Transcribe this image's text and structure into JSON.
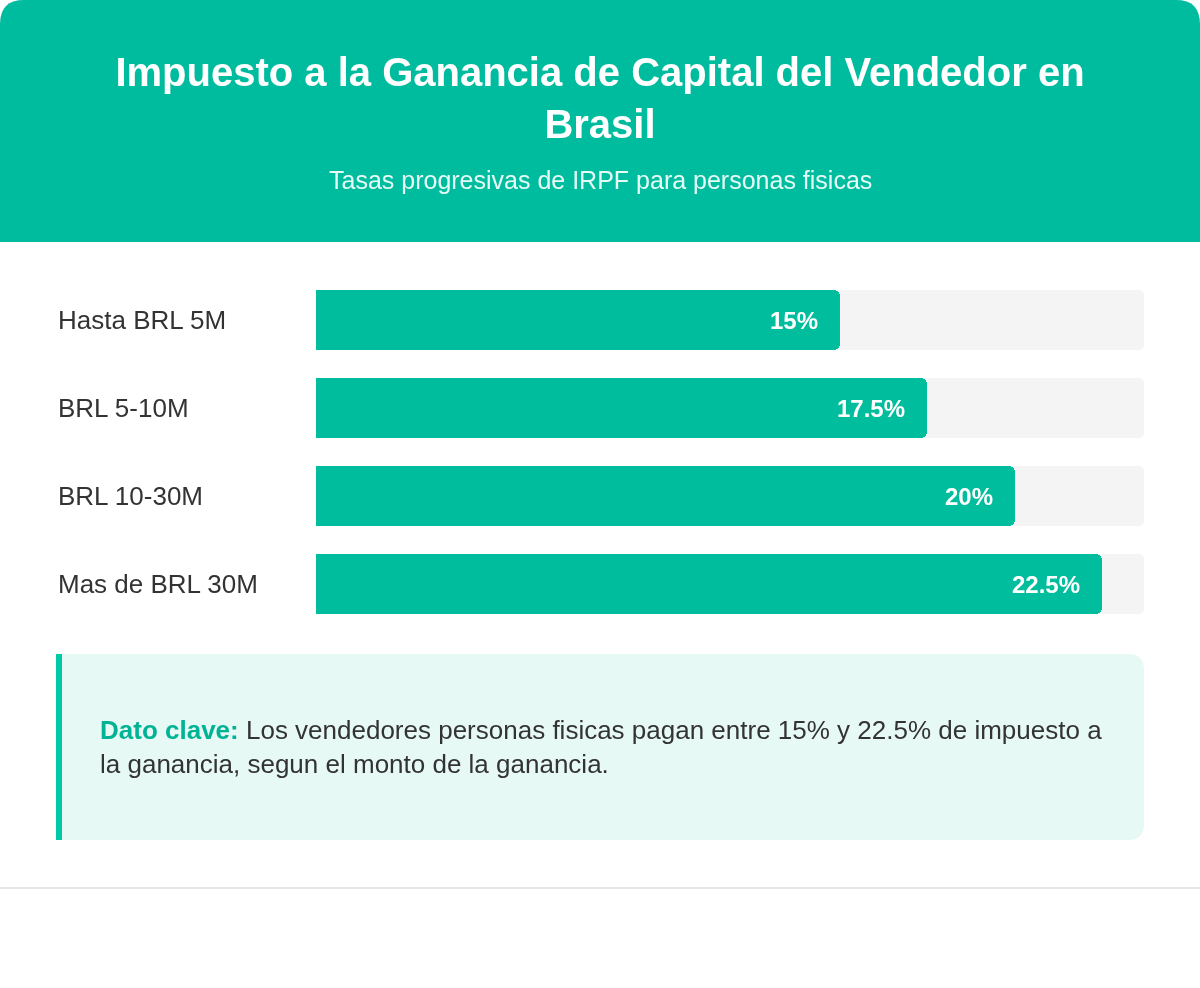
{
  "chart_data": {
    "type": "bar",
    "orientation": "horizontal",
    "title": "Impuesto a la Ganancia de Capital del Vendedor en Brasil",
    "subtitle": "Tasas progresivas de IRPF para personas fisicas",
    "categories": [
      "Hasta BRL 5M",
      "BRL 5-10M",
      "BRL 10-30M",
      "Mas de BRL 30M"
    ],
    "values": [
      15,
      17.5,
      20,
      22.5
    ],
    "value_labels": [
      "15%",
      "17.5%",
      "20%",
      "22.5%"
    ],
    "color": "#00bd9d",
    "xlim": [
      0,
      23.7
    ],
    "tick_labels": "y",
    "annotations": [
      "Dato clave:",
      "Los vendedores personas fisicas pagan entre 15% y 22.5% de impuesto a la ganancia, segun el monto de la ganancia."
    ]
  }
}
